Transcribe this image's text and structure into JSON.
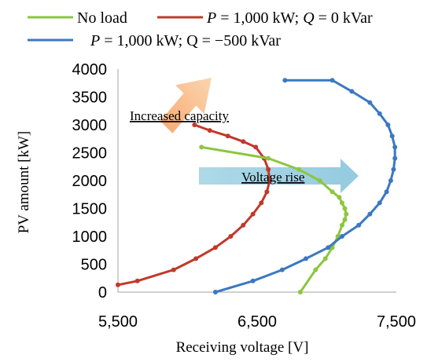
{
  "chart_data": {
    "type": "scatter",
    "xlabel": "Receiving voltage [V]",
    "ylabel": "PV amount [kW]",
    "xlim": [
      5500,
      7500
    ],
    "ylim": [
      0,
      4000
    ],
    "xticks": [
      5500,
      6500,
      7500
    ],
    "xtick_labels": [
      "5,500",
      "6,500",
      "7,500"
    ],
    "yticks": [
      0,
      500,
      1000,
      1500,
      2000,
      2500,
      3000,
      3500,
      4000
    ],
    "grid": false,
    "legend": {
      "placement": "top",
      "entries": [
        {
          "key": "noload",
          "parts": [
            {
              "t": "No load",
              "i": false
            }
          ]
        },
        {
          "key": "p1000q0",
          "parts": [
            {
              "t": "P",
              "i": true
            },
            {
              "t": " = 1,000 kW; ",
              "i": false
            },
            {
              "t": "Q",
              "i": true
            },
            {
              "t": " = 0 kVar",
              "i": false
            }
          ]
        },
        {
          "key": "p1000q500",
          "parts": [
            {
              "t": "P",
              "i": true
            },
            {
              "t": " = 1,000 kW; Q = −500 kVar",
              "i": false
            }
          ]
        }
      ]
    },
    "series": [
      {
        "key": "p1000q0",
        "color": "#c0392b",
        "x": [
          5500,
          5640,
          5900,
          6060,
          6200,
          6310,
          6400,
          6470,
          6530,
          6570,
          6590,
          6580,
          6550,
          6490,
          6400,
          6290,
          6160,
          6050
        ],
        "y": [
          130,
          200,
          400,
          600,
          800,
          1000,
          1200,
          1400,
          1600,
          1800,
          2000,
          2200,
          2400,
          2600,
          2700,
          2800,
          2900,
          3000
        ]
      },
      {
        "key": "noload",
        "color": "#8dc63f",
        "x": [
          6100,
          6580,
          6800,
          6950,
          7040,
          7090,
          7110,
          7130,
          7140,
          7130,
          7110,
          7080,
          7040,
          6990,
          6920,
          6810
        ],
        "y": [
          2600,
          2400,
          2200,
          2000,
          1800,
          1700,
          1600,
          1500,
          1400,
          1300,
          1200,
          1000,
          800,
          600,
          400,
          0
        ]
      },
      {
        "key": "p1000q500",
        "color": "#3b78c2",
        "x": [
          6200,
          6470,
          6680,
          6850,
          7010,
          7110,
          7230,
          7310,
          7380,
          7430,
          7460,
          7480,
          7490,
          7490,
          7470,
          7440,
          7380,
          7310,
          7180,
          7040,
          6700
        ],
        "y": [
          0,
          200,
          400,
          600,
          800,
          1000,
          1200,
          1400,
          1600,
          1800,
          2000,
          2200,
          2400,
          2600,
          2800,
          3000,
          3200,
          3400,
          3600,
          3800,
          3800
        ]
      }
    ],
    "annotations": [
      {
        "text": "Increased capacity",
        "x": 6150,
        "y": 3050
      },
      {
        "text": "Voltage rise",
        "x": 6490,
        "y": 2080
      }
    ]
  }
}
